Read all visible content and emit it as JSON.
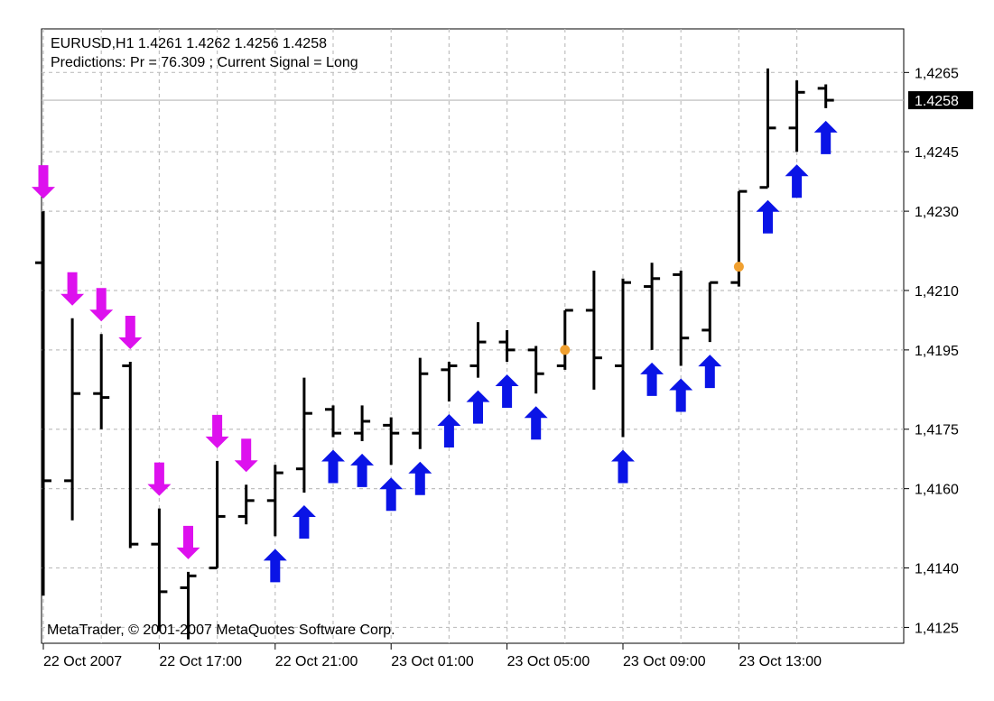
{
  "header": {
    "symbol_line": "EURUSD,H1  1.4261 1.4262 1.4256 1.4258",
    "predictions_line": "Predictions: Pr = 76.309 ; Current Signal =  Long"
  },
  "footer": {
    "copyright": "MetaTrader, © 2001-2007 MetaQuotes Software Corp."
  },
  "colors": {
    "bar": "#000000",
    "up_arrow": "#0a14e6",
    "down_arrow": "#dd11ee",
    "neutral_dot": "#f0a030",
    "grid": "#c0c0c0",
    "current_price_bg": "#000000"
  },
  "chart_data": {
    "type": "ohlc",
    "title": "",
    "xlabel": "",
    "ylabel": "",
    "ylim": [
      1.4121,
      1.4276
    ],
    "grid": true,
    "current_price": 1.4258,
    "current_price_label": "1.4258",
    "y_ticks": [
      {
        "value": 1.4265,
        "label": "1,4265"
      },
      {
        "value": 1.4245,
        "label": "1,4245"
      },
      {
        "value": 1.423,
        "label": "1,4230"
      },
      {
        "value": 1.421,
        "label": "1,4210"
      },
      {
        "value": 1.4195,
        "label": "1,4195"
      },
      {
        "value": 1.4175,
        "label": "1,4175"
      },
      {
        "value": 1.416,
        "label": "1,4160"
      },
      {
        "value": 1.414,
        "label": "1,4140"
      },
      {
        "value": 1.4125,
        "label": "1,4125"
      }
    ],
    "x_ticks": [
      {
        "bar_index": 0,
        "label": "22 Oct 2007"
      },
      {
        "bar_index": 4,
        "label": "22 Oct 17:00"
      },
      {
        "bar_index": 8,
        "label": "22 Oct 21:00"
      },
      {
        "bar_index": 12,
        "label": "23 Oct 01:00"
      },
      {
        "bar_index": 16,
        "label": "23 Oct 05:00"
      },
      {
        "bar_index": 20,
        "label": "23 Oct 09:00"
      },
      {
        "bar_index": 24,
        "label": "23 Oct 13:00"
      }
    ],
    "bars": [
      {
        "o": 1.4217,
        "h": 1.423,
        "l": 1.4133,
        "c": 1.4162,
        "signal": "short"
      },
      {
        "o": 1.4162,
        "h": 1.4203,
        "l": 1.4152,
        "c": 1.4184,
        "signal": "short"
      },
      {
        "o": 1.4184,
        "h": 1.4199,
        "l": 1.4175,
        "c": 1.4183,
        "signal": "short"
      },
      {
        "o": 1.4191,
        "h": 1.4192,
        "l": 1.4145,
        "c": 1.4146,
        "signal": "short"
      },
      {
        "o": 1.4146,
        "h": 1.4155,
        "l": 1.4124,
        "c": 1.4134,
        "signal": "short"
      },
      {
        "o": 1.4135,
        "h": 1.4139,
        "l": 1.4122,
        "c": 1.4138,
        "signal": "short"
      },
      {
        "o": 1.414,
        "h": 1.4167,
        "l": 1.414,
        "c": 1.4153,
        "signal": "short"
      },
      {
        "o": 1.4153,
        "h": 1.4161,
        "l": 1.4151,
        "c": 1.4157,
        "signal": "short"
      },
      {
        "o": 1.4157,
        "h": 1.4166,
        "l": 1.4148,
        "c": 1.4164,
        "signal": "long"
      },
      {
        "o": 1.4165,
        "h": 1.4188,
        "l": 1.4159,
        "c": 1.4179,
        "signal": "long"
      },
      {
        "o": 1.418,
        "h": 1.4181,
        "l": 1.4173,
        "c": 1.4174,
        "signal": "long"
      },
      {
        "o": 1.4174,
        "h": 1.4181,
        "l": 1.4172,
        "c": 1.4177,
        "signal": "long"
      },
      {
        "o": 1.4176,
        "h": 1.4178,
        "l": 1.4166,
        "c": 1.4174,
        "signal": "long"
      },
      {
        "o": 1.4174,
        "h": 1.4193,
        "l": 1.417,
        "c": 1.4189,
        "signal": "long"
      },
      {
        "o": 1.419,
        "h": 1.4192,
        "l": 1.4182,
        "c": 1.4191,
        "signal": "long"
      },
      {
        "o": 1.4191,
        "h": 1.4202,
        "l": 1.4188,
        "c": 1.4197,
        "signal": "long"
      },
      {
        "o": 1.4197,
        "h": 1.42,
        "l": 1.4192,
        "c": 1.4195,
        "signal": "long"
      },
      {
        "o": 1.4195,
        "h": 1.4196,
        "l": 1.4184,
        "c": 1.4189,
        "signal": "long"
      },
      {
        "o": 1.4191,
        "h": 1.4205,
        "l": 1.419,
        "c": 1.4205,
        "signal": "neutral"
      },
      {
        "o": 1.4205,
        "h": 1.4215,
        "l": 1.4185,
        "c": 1.4193,
        "signal": ""
      },
      {
        "o": 1.4191,
        "h": 1.4213,
        "l": 1.4173,
        "c": 1.4212,
        "signal": "long"
      },
      {
        "o": 1.4211,
        "h": 1.4217,
        "l": 1.4195,
        "c": 1.4213,
        "signal": "long"
      },
      {
        "o": 1.4214,
        "h": 1.4215,
        "l": 1.4191,
        "c": 1.4198,
        "signal": "long"
      },
      {
        "o": 1.42,
        "h": 1.4212,
        "l": 1.4197,
        "c": 1.4212,
        "signal": "long"
      },
      {
        "o": 1.4212,
        "h": 1.4235,
        "l": 1.4211,
        "c": 1.4235,
        "signal": "neutral"
      },
      {
        "o": 1.4236,
        "h": 1.4266,
        "l": 1.4236,
        "c": 1.4251,
        "signal": "long"
      },
      {
        "o": 1.4251,
        "h": 1.4263,
        "l": 1.4245,
        "c": 1.426,
        "signal": "long"
      },
      {
        "o": 1.4261,
        "h": 1.4262,
        "l": 1.4256,
        "c": 1.4258,
        "signal": "long"
      }
    ]
  }
}
